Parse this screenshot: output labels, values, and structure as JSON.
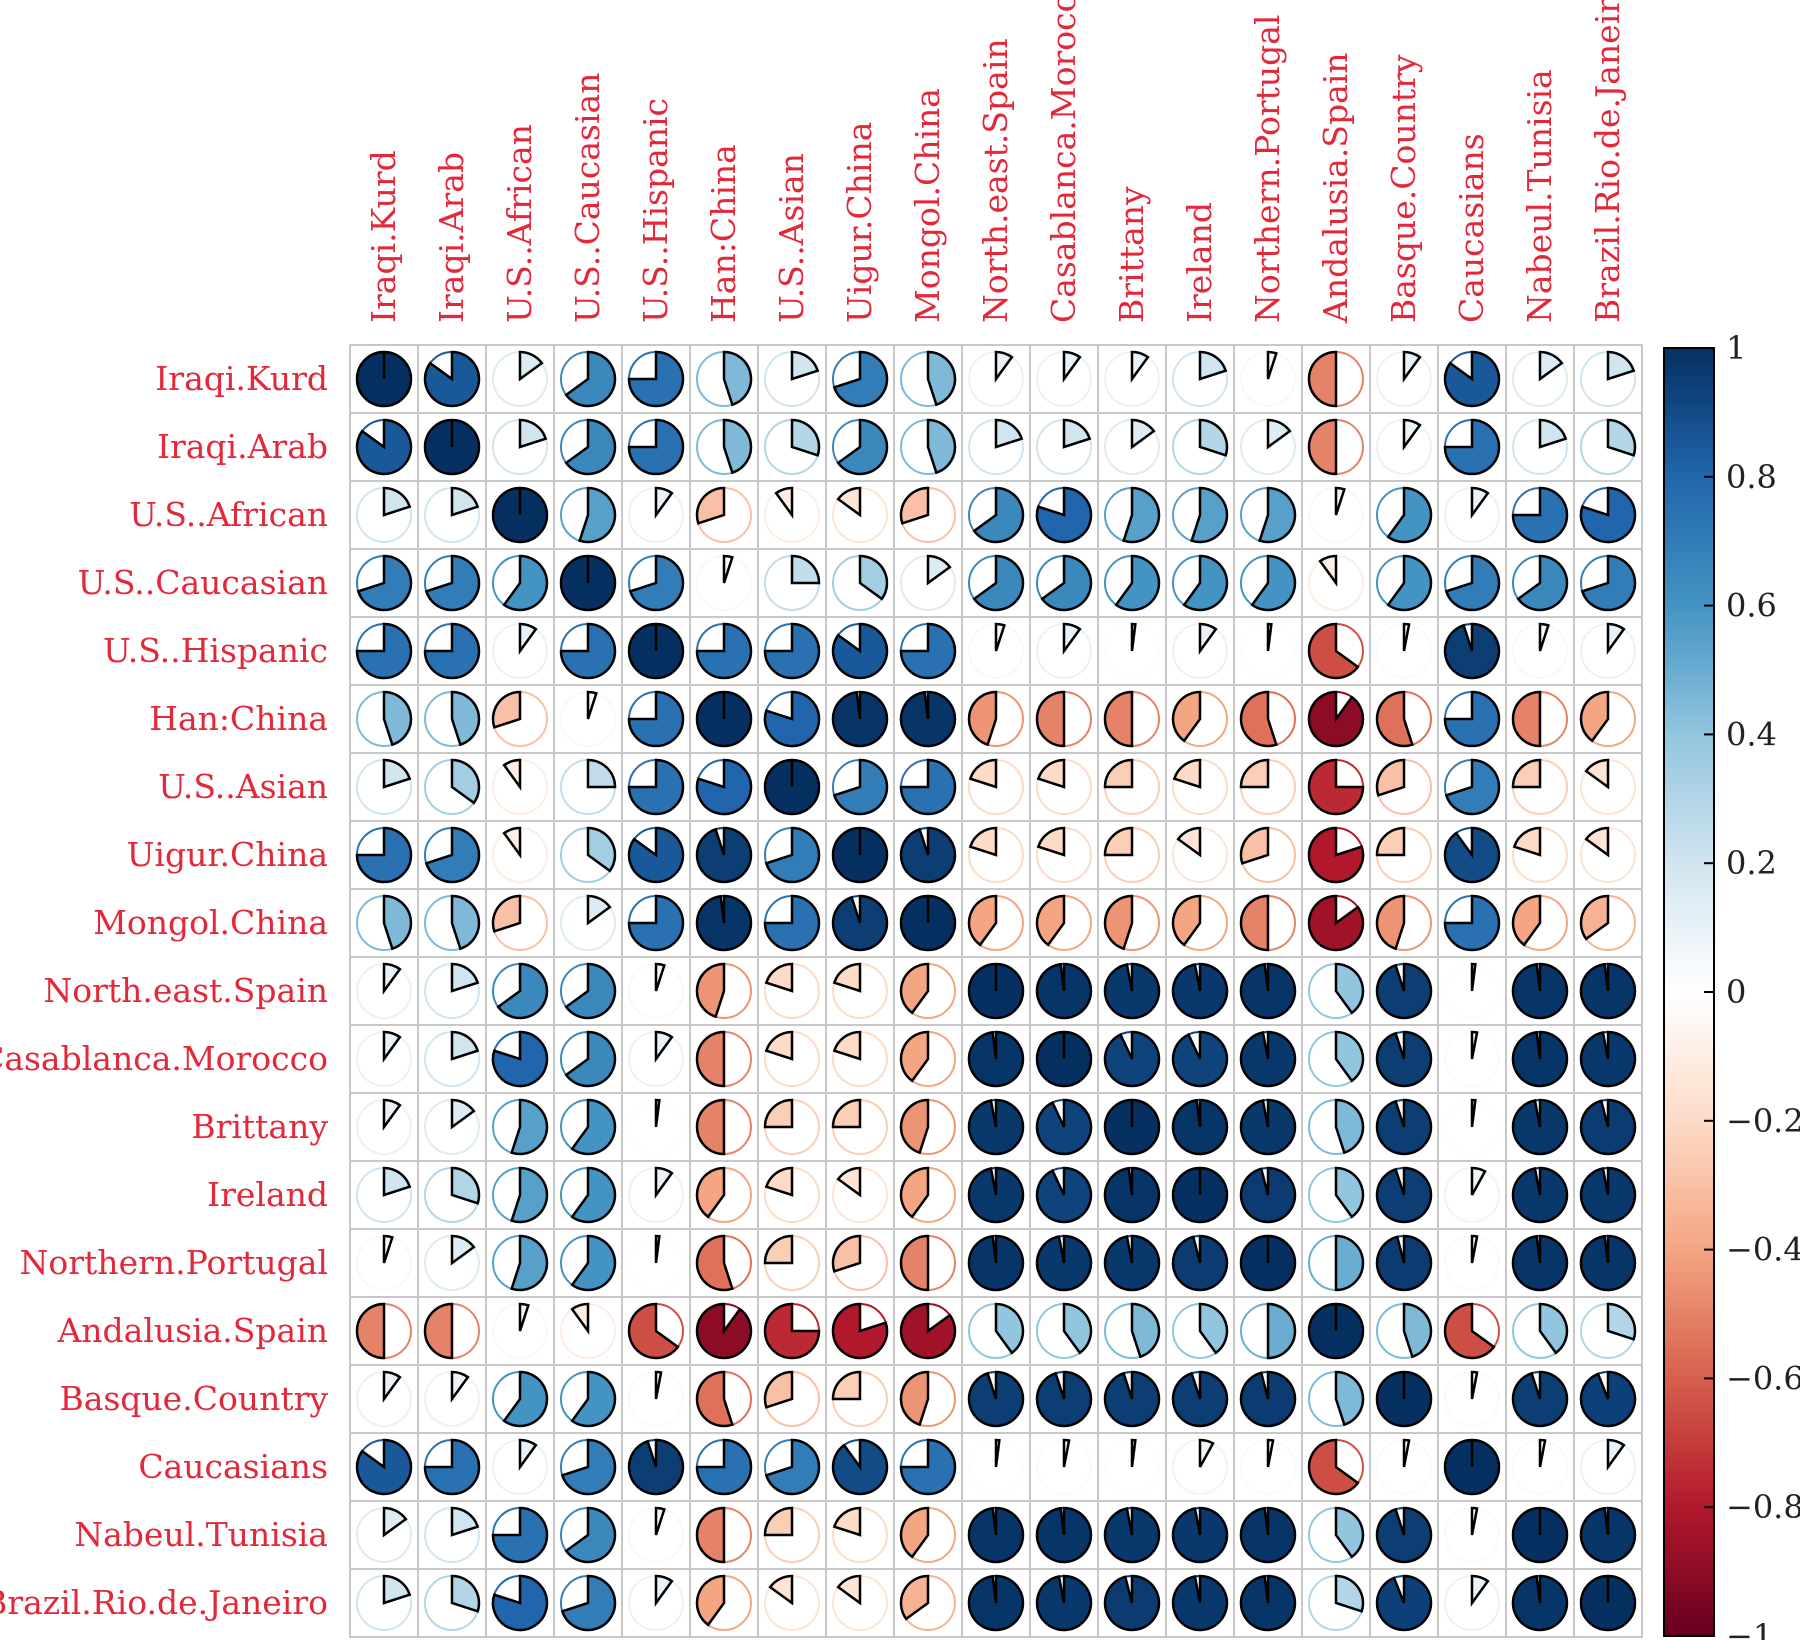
{
  "chart_data": {
    "type": "heatmap",
    "title": "",
    "glyph": "pie",
    "labels": [
      "Iraqi.Kurd",
      "Iraqi.Arab",
      "U.S..African",
      "U.S..Caucasian",
      "U.S..Hispanic",
      "Han:China",
      "U.S..Asian",
      "Uigur.China",
      "Mongol.China",
      "North.east.Spain",
      "Casablanca.Morocco",
      "Brittany",
      "Ireland",
      "Northern.Portugal",
      "Andalusia.Spain",
      "Basque.Country",
      "Caucasians",
      "Nabeul.Tunisia",
      "Brazil.Rio.de.Janeiro"
    ],
    "label_color": "#e3283a",
    "matrix": [
      [
        1.0,
        0.85,
        0.15,
        0.65,
        0.75,
        0.45,
        0.2,
        0.7,
        0.45,
        0.1,
        0.1,
        0.1,
        0.2,
        0.05,
        -0.5,
        0.1,
        0.85,
        0.15,
        0.2
      ],
      [
        0.85,
        1.0,
        0.2,
        0.65,
        0.75,
        0.45,
        0.3,
        0.65,
        0.45,
        0.2,
        0.2,
        0.15,
        0.3,
        0.15,
        -0.5,
        0.1,
        0.75,
        0.2,
        0.3
      ],
      [
        0.2,
        0.2,
        1.0,
        0.55,
        0.1,
        -0.3,
        -0.1,
        -0.15,
        -0.3,
        0.65,
        0.8,
        0.55,
        0.55,
        0.55,
        0.05,
        0.6,
        0.1,
        0.75,
        0.8
      ],
      [
        0.7,
        0.7,
        0.6,
        1.0,
        0.7,
        0.05,
        0.25,
        0.35,
        0.15,
        0.65,
        0.65,
        0.6,
        0.6,
        0.6,
        -0.1,
        0.6,
        0.7,
        0.65,
        0.7
      ],
      [
        0.75,
        0.75,
        0.1,
        0.75,
        1.0,
        0.75,
        0.75,
        0.85,
        0.75,
        0.05,
        0.1,
        0.02,
        0.1,
        0.02,
        -0.65,
        0.03,
        0.95,
        0.05,
        0.1
      ],
      [
        0.45,
        0.45,
        -0.3,
        0.05,
        0.75,
        1.0,
        0.8,
        0.98,
        0.98,
        -0.45,
        -0.5,
        -0.5,
        -0.4,
        -0.55,
        -0.9,
        -0.55,
        0.75,
        -0.5,
        -0.4
      ],
      [
        0.2,
        0.35,
        -0.1,
        0.25,
        0.75,
        0.8,
        1.0,
        0.7,
        0.75,
        -0.2,
        -0.2,
        -0.25,
        -0.2,
        -0.25,
        -0.75,
        -0.3,
        0.7,
        -0.25,
        -0.15
      ],
      [
        0.75,
        0.7,
        -0.1,
        0.35,
        0.85,
        0.95,
        0.7,
        1.0,
        0.95,
        -0.2,
        -0.2,
        -0.25,
        -0.15,
        -0.3,
        -0.8,
        -0.25,
        0.9,
        -0.2,
        -0.15
      ],
      [
        0.45,
        0.45,
        -0.3,
        0.15,
        0.75,
        0.98,
        0.75,
        0.95,
        1.0,
        -0.4,
        -0.4,
        -0.45,
        -0.4,
        -0.5,
        -0.85,
        -0.45,
        0.75,
        -0.4,
        -0.35
      ],
      [
        0.1,
        0.2,
        0.65,
        0.65,
        0.05,
        -0.45,
        -0.2,
        -0.2,
        -0.4,
        1.0,
        0.98,
        0.97,
        0.97,
        0.98,
        0.4,
        0.95,
        0.02,
        0.98,
        0.98
      ],
      [
        0.1,
        0.2,
        0.8,
        0.65,
        0.1,
        -0.5,
        -0.2,
        -0.2,
        -0.4,
        0.98,
        1.0,
        0.93,
        0.93,
        0.97,
        0.4,
        0.95,
        0.03,
        0.98,
        0.97
      ],
      [
        0.1,
        0.15,
        0.55,
        0.6,
        0.02,
        -0.5,
        -0.25,
        -0.25,
        -0.45,
        0.97,
        0.93,
        1.0,
        0.98,
        0.97,
        0.45,
        0.95,
        0.02,
        0.97,
        0.96
      ],
      [
        0.2,
        0.3,
        0.55,
        0.6,
        0.1,
        -0.4,
        -0.2,
        -0.15,
        -0.4,
        0.97,
        0.93,
        0.98,
        1.0,
        0.96,
        0.4,
        0.95,
        0.08,
        0.97,
        0.97
      ],
      [
        0.05,
        0.15,
        0.55,
        0.6,
        0.02,
        -0.55,
        -0.25,
        -0.3,
        -0.5,
        0.98,
        0.97,
        0.97,
        0.96,
        1.0,
        0.5,
        0.96,
        0.03,
        0.98,
        0.98
      ],
      [
        -0.5,
        -0.5,
        0.05,
        -0.1,
        -0.65,
        -0.9,
        -0.75,
        -0.8,
        -0.85,
        0.4,
        0.4,
        0.45,
        0.4,
        0.5,
        1.0,
        0.45,
        -0.65,
        0.4,
        0.3
      ],
      [
        0.1,
        0.1,
        0.6,
        0.6,
        0.03,
        -0.55,
        -0.3,
        -0.25,
        -0.45,
        0.95,
        0.95,
        0.95,
        0.95,
        0.96,
        0.45,
        1.0,
        0.03,
        0.95,
        0.94
      ],
      [
        0.85,
        0.75,
        0.1,
        0.7,
        0.95,
        0.75,
        0.7,
        0.9,
        0.75,
        0.02,
        0.03,
        0.02,
        0.08,
        0.03,
        -0.65,
        0.03,
        1.0,
        0.03,
        0.1
      ],
      [
        0.15,
        0.2,
        0.75,
        0.65,
        0.05,
        -0.5,
        -0.25,
        -0.2,
        -0.4,
        0.98,
        0.98,
        0.97,
        0.97,
        0.98,
        0.4,
        0.95,
        0.03,
        1.0,
        0.98
      ],
      [
        0.2,
        0.3,
        0.8,
        0.7,
        0.1,
        -0.4,
        -0.15,
        -0.15,
        -0.35,
        0.98,
        0.97,
        0.96,
        0.97,
        0.98,
        0.3,
        0.94,
        0.1,
        0.98,
        1.0
      ]
    ],
    "color_scale": {
      "range": [
        -1,
        1
      ],
      "ticks": [
        "1",
        "0.8",
        "0.6",
        "0.4",
        "0.2",
        "0",
        "−0.2",
        "−0.4",
        "−0.6",
        "−0.8",
        "−1"
      ],
      "tick_values": [
        1,
        0.8,
        0.6,
        0.4,
        0.2,
        0,
        -0.2,
        -0.4,
        -0.6,
        -0.8,
        -1
      ],
      "stops": [
        "#67001f",
        "#b2182b",
        "#d6604d",
        "#f4a582",
        "#fddbc7",
        "#ffffff",
        "#d1e5f0",
        "#92c5de",
        "#4393c3",
        "#2166ac",
        "#053061"
      ],
      "legend_position": "right"
    },
    "grid": true
  }
}
